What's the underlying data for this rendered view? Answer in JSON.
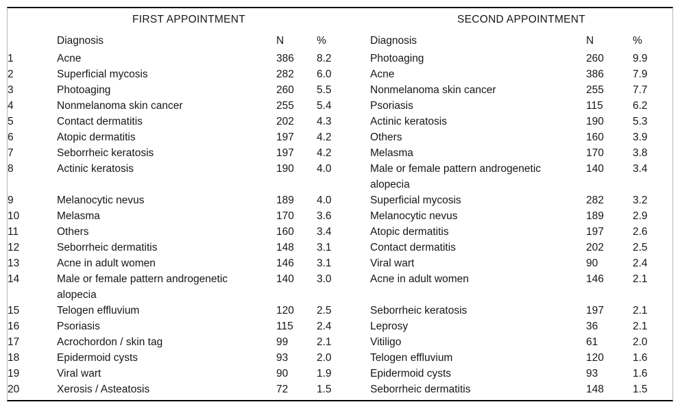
{
  "page": {
    "background_color": "#ffffff",
    "text_color": "#161616",
    "rule_color": "#000000",
    "frame_border_color": "#b5b5b5"
  },
  "table": {
    "section_titles": {
      "first": "FIRST APPOINTMENT",
      "second": "SECOND APPOINTMENT"
    },
    "column_headers": {
      "diagnosis": "Diagnosis",
      "n": "N",
      "pct": "%"
    },
    "rows": [
      {
        "rank": "1",
        "first": {
          "diagnosis": "Acne",
          "n": "386",
          "pct": "8.2"
        },
        "second": {
          "diagnosis": "Photoaging",
          "n": "260",
          "pct": "9.9"
        }
      },
      {
        "rank": "2",
        "first": {
          "diagnosis": "Superficial mycosis",
          "n": "282",
          "pct": "6.0"
        },
        "second": {
          "diagnosis": "Acne",
          "n": "386",
          "pct": "7.9"
        }
      },
      {
        "rank": "3",
        "first": {
          "diagnosis": "Photoaging",
          "n": "260",
          "pct": "5.5"
        },
        "second": {
          "diagnosis": "Nonmelanoma skin cancer",
          "n": "255",
          "pct": "7.7"
        }
      },
      {
        "rank": "4",
        "first": {
          "diagnosis": "Nonmelanoma skin cancer",
          "n": "255",
          "pct": "5.4"
        },
        "second": {
          "diagnosis": "Psoriasis",
          "n": "115",
          "pct": "6.2"
        }
      },
      {
        "rank": "5",
        "first": {
          "diagnosis": "Contact dermatitis",
          "n": "202",
          "pct": "4.3"
        },
        "second": {
          "diagnosis": "Actinic keratosis",
          "n": "190",
          "pct": "5.3"
        }
      },
      {
        "rank": "6",
        "first": {
          "diagnosis": "Atopic dermatitis",
          "n": "197",
          "pct": "4.2"
        },
        "second": {
          "diagnosis": "Others",
          "n": "160",
          "pct": "3.9"
        }
      },
      {
        "rank": "7",
        "first": {
          "diagnosis": "Seborrheic keratosis",
          "n": "197",
          "pct": "4.2"
        },
        "second": {
          "diagnosis": "Melasma",
          "n": "170",
          "pct": "3.8"
        }
      },
      {
        "rank": "8",
        "first": {
          "diagnosis": "Actinic keratosis",
          "n": "190",
          "pct": "4.0"
        },
        "second": {
          "diagnosis": "Male or female pattern androgenetic\nalopecia",
          "n": "140",
          "pct": "3.4"
        }
      },
      {
        "rank": "9",
        "first": {
          "diagnosis": "Melanocytic nevus",
          "n": "189",
          "pct": "4.0"
        },
        "second": {
          "diagnosis": "Superficial mycosis",
          "n": "282",
          "pct": "3.2"
        }
      },
      {
        "rank": "10",
        "first": {
          "diagnosis": "Melasma",
          "n": "170",
          "pct": "3.6"
        },
        "second": {
          "diagnosis": "Melanocytic nevus",
          "n": "189",
          "pct": "2.9"
        }
      },
      {
        "rank": "11",
        "first": {
          "diagnosis": "Others",
          "n": "160",
          "pct": "3.4"
        },
        "second": {
          "diagnosis": "Atopic dermatitis",
          "n": "197",
          "pct": "2.6"
        }
      },
      {
        "rank": "12",
        "first": {
          "diagnosis": "Seborrheic dermatitis",
          "n": "148",
          "pct": "3.1"
        },
        "second": {
          "diagnosis": "Contact dermatitis",
          "n": "202",
          "pct": "2.5"
        }
      },
      {
        "rank": "13",
        "first": {
          "diagnosis": "Acne in adult women",
          "n": "146",
          "pct": "3.1"
        },
        "second": {
          "diagnosis": "Viral wart",
          "n": "90",
          "pct": "2.4"
        }
      },
      {
        "rank": "14",
        "first": {
          "diagnosis": "Male or female pattern androgenetic\nalopecia",
          "n": "140",
          "pct": "3.0"
        },
        "second": {
          "diagnosis": "Acne in adult women",
          "n": "146",
          "pct": "2.1"
        }
      },
      {
        "rank": "15",
        "first": {
          "diagnosis": "Telogen effluvium",
          "n": "120",
          "pct": "2.5"
        },
        "second": {
          "diagnosis": "Seborrheic keratosis",
          "n": "197",
          "pct": "2.1"
        }
      },
      {
        "rank": "16",
        "first": {
          "diagnosis": "Psoriasis",
          "n": "115",
          "pct": "2.4"
        },
        "second": {
          "diagnosis": "Leprosy",
          "n": "36",
          "pct": "2.1"
        }
      },
      {
        "rank": "17",
        "first": {
          "diagnosis": "Acrochordon / skin tag",
          "n": "99",
          "pct": "2.1"
        },
        "second": {
          "diagnosis": "Vitiligo",
          "n": "61",
          "pct": "2.0"
        }
      },
      {
        "rank": "18",
        "first": {
          "diagnosis": "Epidermoid cysts",
          "n": "93",
          "pct": "2.0"
        },
        "second": {
          "diagnosis": "Telogen effluvium",
          "n": "120",
          "pct": "1.6"
        }
      },
      {
        "rank": "19",
        "first": {
          "diagnosis": "Viral wart",
          "n": "90",
          "pct": "1.9"
        },
        "second": {
          "diagnosis": "Epidermoid cysts",
          "n": "93",
          "pct": "1.6"
        }
      },
      {
        "rank": "20",
        "first": {
          "diagnosis": "Xerosis / Asteatosis",
          "n": "72",
          "pct": "1.5"
        },
        "second": {
          "diagnosis": "Seborrheic dermatitis",
          "n": "148",
          "pct": "1.5"
        }
      }
    ]
  }
}
